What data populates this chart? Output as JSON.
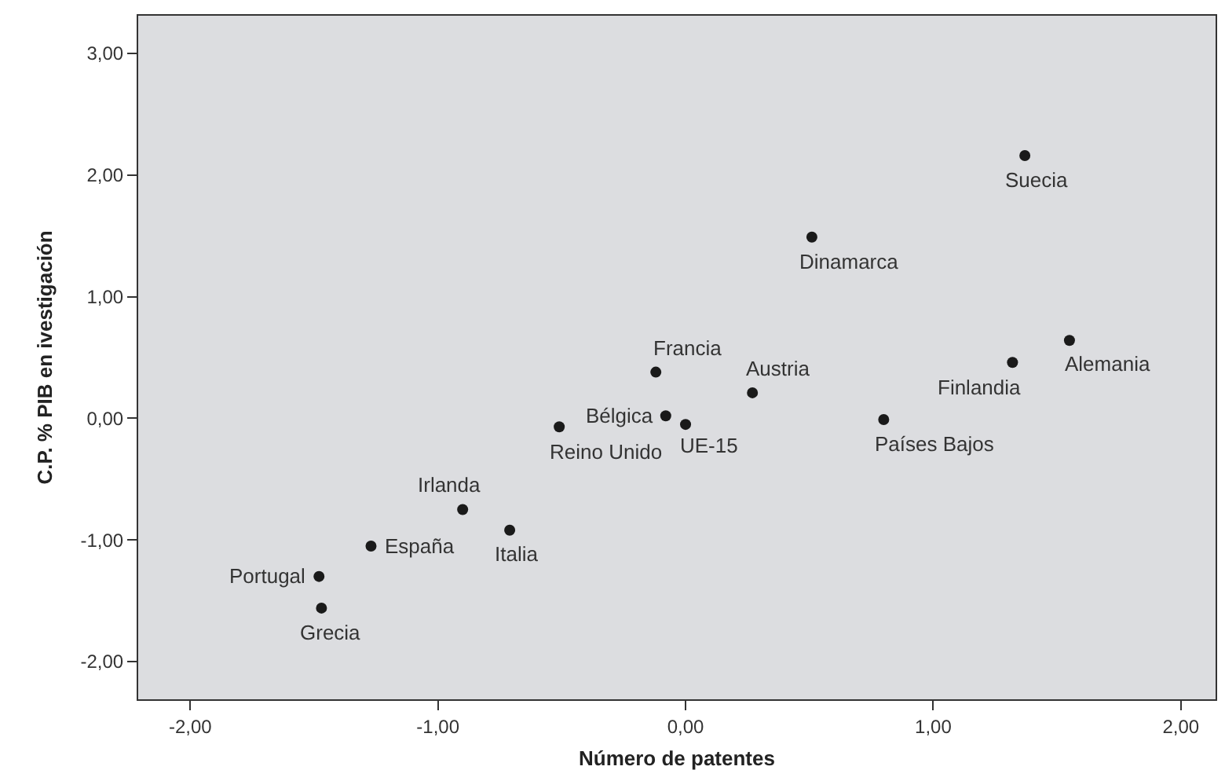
{
  "chart_data": {
    "type": "scatter",
    "xlabel": "Número de patentes",
    "ylabel": "C.P. % PIB en ivestigación",
    "x": [
      1.37,
      0.51,
      1.55,
      1.32,
      -0.12,
      0.27,
      -0.08,
      0.0,
      -0.51,
      0.8,
      -0.9,
      -0.71,
      -1.27,
      -1.48,
      -1.47
    ],
    "series": [
      {
        "color": "#1a1a1a",
        "values": [
          2.16,
          1.49,
          0.64,
          0.46,
          0.38,
          0.21,
          0.02,
          -0.05,
          -0.07,
          -0.01,
          -0.75,
          -0.92,
          -1.05,
          -1.3,
          -1.56
        ]
      }
    ],
    "annotations": [
      {
        "text": "Suecia",
        "x": 1.37,
        "y": 2.16
      },
      {
        "text": "Dinamarca",
        "x": 0.51,
        "y": 1.49
      },
      {
        "text": "Alemania",
        "x": 1.55,
        "y": 0.64
      },
      {
        "text": "Finlandia",
        "x": 1.32,
        "y": 0.46
      },
      {
        "text": "Francia",
        "x": -0.12,
        "y": 0.38
      },
      {
        "text": "Austria",
        "x": 0.27,
        "y": 0.21
      },
      {
        "text": "Bélgica",
        "x": -0.08,
        "y": 0.02
      },
      {
        "text": "UE-15",
        "x": 0.0,
        "y": -0.05
      },
      {
        "text": "Reino Unido",
        "x": -0.51,
        "y": -0.07
      },
      {
        "text": "Países Bajos",
        "x": 0.8,
        "y": -0.01
      },
      {
        "text": "Irlanda",
        "x": -0.9,
        "y": -0.75
      },
      {
        "text": "Italia",
        "x": -0.71,
        "y": -0.92
      },
      {
        "text": "España",
        "x": -1.27,
        "y": -1.05
      },
      {
        "text": "Portugal",
        "x": -1.48,
        "y": -1.3
      },
      {
        "text": "Grecia",
        "x": -1.47,
        "y": -1.56
      }
    ],
    "xlim": [
      -2.21,
      2.14
    ],
    "ylim": [
      -2.31,
      3.31
    ],
    "xticks": [
      {
        "value": -2,
        "label": "-2,00"
      },
      {
        "value": -1,
        "label": "-1,00"
      },
      {
        "value": 0,
        "label": "0,00"
      },
      {
        "value": 1,
        "label": "1,00"
      },
      {
        "value": 2,
        "label": "2,00"
      }
    ],
    "yticks": [
      {
        "value": -2,
        "label": "-2,00"
      },
      {
        "value": -1,
        "label": "-1,00"
      },
      {
        "value": 0,
        "label": "0,00"
      },
      {
        "value": 1,
        "label": "1,00"
      },
      {
        "value": 2,
        "label": "2,00"
      },
      {
        "value": 3,
        "label": "3,00"
      }
    ],
    "marker": "circle"
  }
}
